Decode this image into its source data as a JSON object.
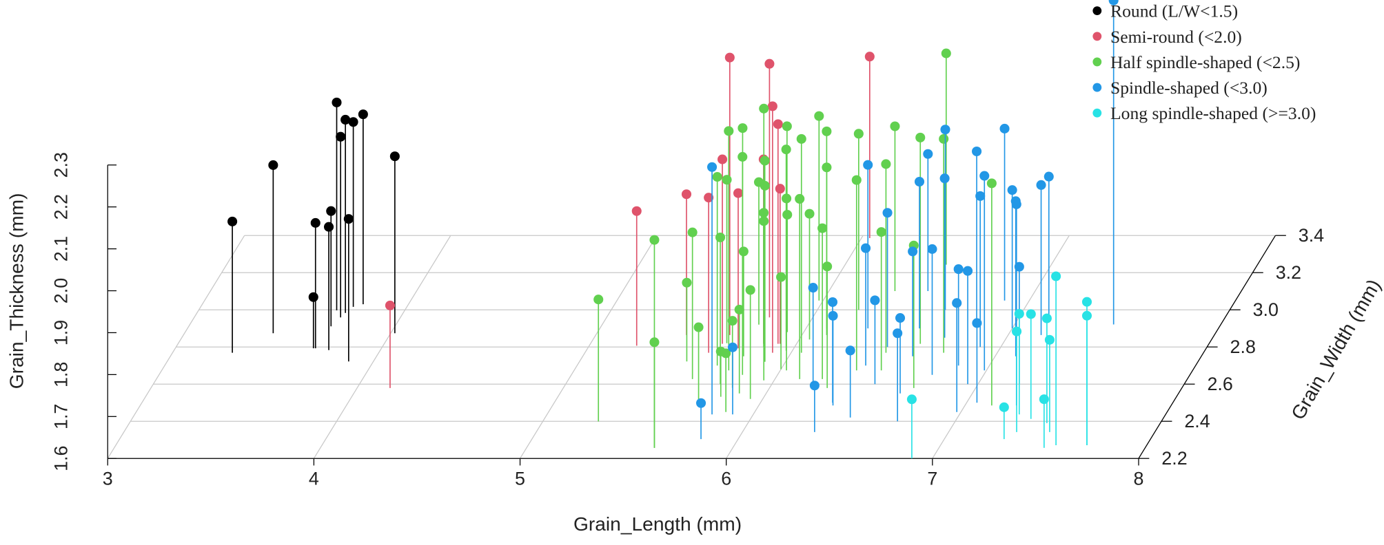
{
  "chart_data": {
    "type": "scatter3d",
    "xlabel": "Grain_Length (mm)",
    "ylabel": "Grain_Width (mm)",
    "zlabel": "Grain_Thickness (mm)",
    "xlim": [
      3,
      8
    ],
    "xticks": [
      3,
      4,
      5,
      6,
      7,
      8
    ],
    "ylim": [
      2.2,
      3.4
    ],
    "yticks": [
      2.2,
      2.4,
      2.6,
      2.8,
      {
        "value": 3,
        "label": "3.0"
      },
      3.2,
      3.4
    ],
    "zlim": [
      1.6,
      2.3
    ],
    "zticks": [
      1.6,
      1.7,
      1.8,
      1.9,
      {
        "value": 2,
        "label": "2.0"
      },
      2.1,
      2.2,
      2.3
    ],
    "grid": true,
    "legend": "top-right",
    "series": [
      {
        "name": "Round (L/W<1.5)",
        "color": "#000000",
        "x": [
          3.29,
          3.43,
          3.67,
          3.68,
          3.75,
          3.69,
          3.67,
          3.71,
          3.72,
          3.88,
          3.74,
          3.78,
          4.02
        ],
        "y": [
          2.769,
          2.874,
          2.793,
          2.793,
          2.783,
          2.911,
          2.997,
          2.959,
          2.983,
          2.722,
          3.016,
          3.03,
          2.874
        ],
        "z": [
          1.913,
          2.001,
          1.722,
          1.899,
          1.894,
          1.875,
          2.096,
          2.031,
          2.061,
          1.94,
          2.041,
          2.053,
          2.022
        ]
      },
      {
        "name": "Semi-round (<2.0)",
        "color": "#df536b",
        "x": [
          4.16,
          5.23,
          5.44,
          5.65,
          5.79,
          6.04,
          5.91,
          5.91,
          5.64,
          5.6,
          5.84,
          5.73,
          5.92
        ],
        "y": [
          2.579,
          2.807,
          2.864,
          2.864,
          2.959,
          3.386,
          2.769,
          2.817,
          2.817,
          2.769,
          2.817,
          2.793,
          2.817
        ],
        "z": [
          1.797,
          1.921,
          1.936,
          2.262,
          2.205,
          2.033,
          2.188,
          2.124,
          2.04,
          1.97,
          2.04,
          1.97,
          1.97
        ]
      },
      {
        "name": "Half spindle-shaped (<2.5)",
        "color": "#61d04f",
        "x": [
          5.27,
          5.62,
          5.62,
          6.49,
          5.75,
          6.05,
          6.32,
          6.6,
          6.74,
          6.12,
          6.37,
          6.46,
          7.13,
          6.7,
          6.49,
          6.23,
          6.28,
          6.03,
          6.12,
          5.6,
          5.52,
          5.79,
          5.68,
          5.72,
          5.75,
          5.78,
          5.8,
          5.83,
          5.85,
          5.87,
          5.9,
          5.92,
          5.95,
          5.97,
          6.0,
          5.7,
          5.82,
          5.88,
          5.76,
          6.05,
          5.66,
          5.94,
          6.1,
          6.2,
          5.98,
          5.74,
          5.86
        ],
        "y": [
          2.399,
          2.257,
          2.257,
          3.243,
          2.674,
          2.769,
          3.101,
          2.817,
          2.769,
          2.864,
          2.674,
          2.769,
          2.485,
          2.579,
          2.674,
          2.627,
          2.579,
          2.674,
          2.627,
          2.627,
          2.722,
          2.532,
          2.7,
          2.85,
          2.6,
          2.75,
          2.9,
          2.65,
          2.8,
          2.55,
          2.72,
          2.88,
          2.62,
          2.78,
          2.68,
          2.5,
          2.58,
          2.95,
          2.92,
          2.84,
          2.82,
          2.52,
          2.9,
          3.0,
          3.05,
          3.0,
          2.45
        ],
        "z": [
          1.891,
          2.096,
          1.852,
          2.104,
          2.171,
          2.11,
          1.993,
          2.092,
          2.11,
          2.0,
          2.054,
          2.05,
          2.13,
          1.94,
          1.93,
          1.96,
          1.89,
          2.01,
          2.03,
          1.95,
          1.788,
          1.708,
          2.05,
          2.1,
          1.95,
          1.85,
          2.0,
          2.12,
          1.92,
          1.8,
          2.02,
          1.88,
          1.98,
          2.08,
          1.82,
          1.78,
          1.76,
          2.06,
          1.94,
          1.9,
          1.99,
          1.86,
          2.07,
          2.02,
          2.04,
          2.08,
          1.74
        ]
      },
      {
        "name": "Spindle-shaped (<3.0)",
        "color": "#2297e6",
        "x": [
          7.48,
          5.82,
          5.8,
          6.48,
          6.99,
          7.16,
          7.25,
          6.35,
          5.9,
          6.36,
          6.4,
          6.45,
          6.5,
          6.55,
          6.6,
          6.65,
          6.7,
          6.75,
          6.8,
          6.85,
          6.9,
          6.95,
          7.0,
          7.05,
          7.1,
          6.35,
          6.3,
          6.62,
          6.88,
          7.15,
          7.2,
          6.48,
          6.72,
          6.98,
          6.2
        ],
        "y": [
          2.921,
          2.304,
          2.437,
          3.101,
          2.674,
          2.864,
          2.485,
          2.342,
          2.437,
          2.485,
          2.7,
          2.8,
          2.6,
          2.9,
          2.75,
          2.55,
          2.85,
          2.65,
          2.95,
          2.7,
          2.8,
          2.6,
          2.9,
          2.5,
          2.75,
          2.5,
          2.9,
          3.0,
          3.05,
          2.95,
          2.6,
          2.42,
          2.4,
          2.45,
          2.6
        ],
        "z": [
          2.373,
          1.686,
          2.19,
          1.927,
          2.064,
          1.958,
          2.08,
          1.711,
          1.76,
          1.814,
          1.88,
          1.92,
          1.8,
          1.95,
          1.85,
          1.78,
          1.98,
          1.9,
          2.0,
          1.83,
          1.96,
          1.87,
          1.93,
          1.79,
          1.97,
          1.84,
          1.99,
          2.03,
          2.01,
          1.94,
          1.88,
          1.76,
          1.81,
          1.86,
          1.83
        ]
      },
      {
        "name": "Long spindle-shaped (>=3.0)",
        "color": "#28e2e5",
        "x": [
          6.9,
          7.29,
          7.51,
          7.56,
          7.71,
          7.71,
          7.29,
          7.45,
          7.49,
          7.33,
          7.36
        ],
        "y": [
          2.2,
          2.304,
          2.257,
          2.271,
          2.271,
          2.271,
          2.437,
          2.39,
          2.342,
          2.342,
          2.413
        ],
        "z": [
          1.741,
          1.676,
          1.716,
          2.003,
          1.942,
          1.909,
          1.84,
          1.85,
          1.82,
          1.84,
          1.85
        ]
      }
    ]
  }
}
